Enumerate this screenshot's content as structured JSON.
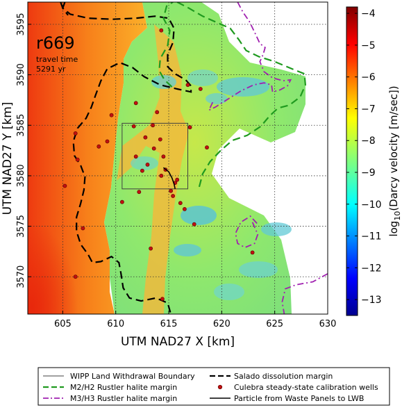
{
  "annotation": {
    "realization": "r669",
    "line1": "travel time",
    "line2": "5291 yr"
  },
  "colors": {
    "salado": "#000000",
    "m2h2": "#1f9a1f",
    "m3h3": "#a020b0",
    "wipp": "#404040",
    "wells": "#c01010",
    "particle": "#000000"
  },
  "legend": {
    "wipp": "WIPP Land Withdrawal Boundary",
    "m2h2": "M2/H2 Rustler halite margin",
    "m3h3": "M3/H3 Rustler halite margin",
    "salado": "Salado dissolution margin",
    "wells": "Culebra steady-state calibration wells",
    "particle": "Particle from Waste Panels to LWB"
  },
  "chart_data": {
    "type": "heatmap",
    "xlabel": "UTM NAD27 X [km]",
    "ylabel": "UTM NAD27 Y [km]",
    "xlim": [
      601.7,
      630
    ],
    "ylim": [
      3566.3,
      3597.2
    ],
    "xticks": [
      605,
      610,
      615,
      620,
      625,
      630
    ],
    "yticks": [
      3570,
      3575,
      3580,
      3585,
      3590,
      3595
    ],
    "grid": true,
    "colorbar": {
      "label": "log10(Darcy velocity [m/sec])",
      "label_main": "log",
      "label_sub": "10",
      "label_rest": "(Darcy velocity [m/sec])",
      "range": [
        -13.5,
        -3.8
      ],
      "ticks": [
        -4,
        -5,
        -6,
        -7,
        -8,
        -9,
        -10,
        -11,
        -12,
        -13
      ],
      "tick_labels": [
        "−4",
        "−5",
        "−6",
        "−7",
        "−8",
        "−9",
        "−10",
        "−11",
        "−12",
        "−13"
      ],
      "colormap": "jet"
    },
    "wipp_boundary": {
      "x": [
        610.6,
        616.8
      ],
      "y": [
        3578.7,
        3585.2
      ]
    },
    "wells": [
      [
        614.3,
        3594.4
      ],
      [
        616.8,
        3589.0
      ],
      [
        618.0,
        3588.6
      ],
      [
        611.9,
        3587.2
      ],
      [
        609.6,
        3586.0
      ],
      [
        613.9,
        3586.3
      ],
      [
        613.5,
        3585.0
      ],
      [
        611.7,
        3584.9
      ],
      [
        617.0,
        3584.8
      ],
      [
        606.2,
        3584.2
      ],
      [
        612.8,
        3583.8
      ],
      [
        614.2,
        3583.6
      ],
      [
        609.2,
        3583.4
      ],
      [
        608.4,
        3582.9
      ],
      [
        613.6,
        3582.7
      ],
      [
        618.6,
        3582.8
      ],
      [
        611.9,
        3581.9
      ],
      [
        614.5,
        3581.9
      ],
      [
        606.4,
        3581.6
      ],
      [
        613.0,
        3581.1
      ],
      [
        612.5,
        3580.5
      ],
      [
        614.7,
        3580.6
      ],
      [
        614.3,
        3580.0
      ],
      [
        612.2,
        3578.4
      ],
      [
        615.8,
        3579.6
      ],
      [
        615.6,
        3579.3
      ],
      [
        615.2,
        3578.5
      ],
      [
        615.4,
        3578.0
      ],
      [
        616.1,
        3577.3
      ],
      [
        610.6,
        3577.4
      ],
      [
        616.5,
        3576.7
      ],
      [
        605.2,
        3579.0
      ],
      [
        606.9,
        3574.8
      ],
      [
        617.4,
        3575.2
      ],
      [
        613.3,
        3572.8
      ],
      [
        622.9,
        3572.4
      ],
      [
        606.2,
        3570.0
      ],
      [
        614.4,
        3567.8
      ]
    ],
    "particle_path": [
      [
        614.5,
        3580.8
      ],
      [
        615.0,
        3580.4
      ],
      [
        615.3,
        3579.8
      ],
      [
        615.5,
        3579.2
      ],
      [
        615.6,
        3578.7
      ]
    ],
    "salado_margin": [
      [
        605.2,
        3597.2
      ],
      [
        605.0,
        3596.6
      ],
      [
        605.7,
        3596.0
      ],
      [
        607.4,
        3595.6
      ],
      [
        609.7,
        3595.5
      ],
      [
        611.9,
        3595.6
      ],
      [
        613.7,
        3595.8
      ],
      [
        615.0,
        3595.6
      ],
      [
        615.5,
        3594.6
      ],
      [
        615.4,
        3593.2
      ],
      [
        614.9,
        3592.0
      ],
      [
        614.9,
        3590.8
      ],
      [
        615.6,
        3590.1
      ],
      [
        616.6,
        3589.5
      ],
      [
        617.1,
        3588.9
      ],
      [
        617.1,
        3588.3
      ],
      [
        615.8,
        3588.6
      ],
      [
        614.2,
        3589.0
      ],
      [
        612.7,
        3589.8
      ],
      [
        611.6,
        3590.7
      ],
      [
        610.4,
        3591.2
      ],
      [
        609.2,
        3590.6
      ],
      [
        608.6,
        3589.4
      ],
      [
        608.1,
        3588.0
      ],
      [
        607.7,
        3586.8
      ],
      [
        607.2,
        3585.7
      ],
      [
        606.4,
        3584.7
      ],
      [
        606.0,
        3583.4
      ],
      [
        606.1,
        3582.0
      ],
      [
        606.7,
        3581.0
      ],
      [
        607.1,
        3579.9
      ],
      [
        607.0,
        3578.6
      ],
      [
        606.7,
        3577.3
      ],
      [
        606.3,
        3575.9
      ],
      [
        606.3,
        3574.5
      ],
      [
        606.7,
        3573.2
      ],
      [
        607.4,
        3572.2
      ],
      [
        607.8,
        3571.4
      ],
      [
        608.6,
        3571.5
      ],
      [
        609.6,
        3572.0
      ],
      [
        610.3,
        3571.4
      ],
      [
        610.5,
        3570.3
      ],
      [
        610.7,
        3568.9
      ],
      [
        611.3,
        3567.9
      ],
      [
        612.4,
        3567.6
      ],
      [
        613.8,
        3567.9
      ],
      [
        614.9,
        3567.4
      ],
      [
        615.2,
        3566.3
      ]
    ],
    "salado_upper_left": [
      [
        604.8,
        3597.2
      ],
      [
        605.0,
        3596.6
      ],
      [
        605.5,
        3595.9
      ]
    ],
    "m2h2_margin": [
      [
        615.8,
        3597.2
      ],
      [
        616.9,
        3596.6
      ],
      [
        618.2,
        3595.8
      ],
      [
        619.5,
        3595.2
      ],
      [
        620.8,
        3594.6
      ],
      [
        621.6,
        3593.5
      ],
      [
        622.3,
        3592.4
      ],
      [
        623.5,
        3591.8
      ],
      [
        625.0,
        3591.3
      ],
      [
        626.6,
        3590.6
      ],
      [
        627.8,
        3590.1
      ],
      [
        627.9,
        3589.0
      ],
      [
        627.4,
        3587.8
      ],
      [
        626.4,
        3587.0
      ],
      [
        625.3,
        3586.7
      ],
      [
        624.5,
        3585.9
      ],
      [
        623.7,
        3584.9
      ],
      [
        622.4,
        3584.0
      ],
      [
        621.0,
        3583.5
      ],
      [
        619.9,
        3582.5
      ],
      [
        618.9,
        3581.4
      ],
      [
        618.2,
        3580.2
      ],
      [
        617.8,
        3578.6
      ]
    ],
    "m2h2_lower_left": [
      [
        615.3,
        3588.8
      ],
      [
        614.6,
        3589.5
      ],
      [
        614.1,
        3590.4
      ],
      [
        614.2,
        3591.6
      ],
      [
        614.9,
        3592.9
      ],
      [
        615.1,
        3594.4
      ],
      [
        614.5,
        3595.6
      ],
      [
        614.8,
        3596.8
      ],
      [
        615.4,
        3597.2
      ]
    ],
    "m3h3_margin": [
      [
        621.5,
        3597.2
      ],
      [
        622.0,
        3596.2
      ],
      [
        622.6,
        3595.3
      ],
      [
        623.2,
        3594.0
      ],
      [
        623.6,
        3593.1
      ],
      [
        624.1,
        3592.7
      ],
      [
        623.9,
        3592.0
      ],
      [
        623.6,
        3591.3
      ],
      [
        624.0,
        3590.3
      ],
      [
        624.8,
        3589.7
      ],
      [
        625.8,
        3589.4
      ],
      [
        626.5,
        3589.5
      ],
      [
        626.2,
        3588.9
      ],
      [
        625.5,
        3588.5
      ],
      [
        624.8,
        3588.3
      ],
      [
        624.7,
        3589.0
      ],
      [
        624.0,
        3589.2
      ],
      [
        623.0,
        3589.0
      ],
      [
        621.8,
        3588.4
      ],
      [
        620.6,
        3587.6
      ],
      [
        619.4,
        3586.8
      ],
      [
        618.8,
        3586.5
      ],
      [
        619.2,
        3587.4
      ]
    ],
    "m3h3_lower": [
      [
        630.0,
        3570.3
      ],
      [
        628.6,
        3569.5
      ],
      [
        627.0,
        3569.2
      ],
      [
        626.0,
        3568.8
      ],
      [
        625.7,
        3567.5
      ],
      [
        625.9,
        3566.3
      ]
    ],
    "m3h3_curl": [
      [
        622.9,
        3575.4
      ],
      [
        623.4,
        3574.2
      ],
      [
        623.1,
        3573.3
      ],
      [
        622.2,
        3572.9
      ],
      [
        621.5,
        3573.3
      ],
      [
        621.3,
        3574.3
      ],
      [
        621.8,
        3575.4
      ],
      [
        622.7,
        3576.0
      ],
      [
        623.4,
        3575.2
      ]
    ]
  }
}
